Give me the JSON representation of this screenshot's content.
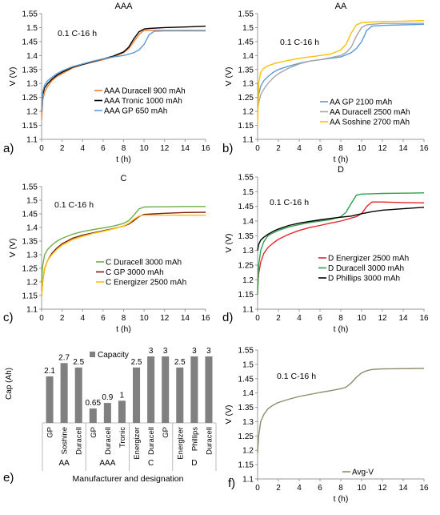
{
  "chart_data": [
    {
      "id": "a",
      "type": "line",
      "panel_letter": "a)",
      "title": "AAA",
      "annotation": "0.1 C-16 h",
      "xlabel": "t (h)",
      "ylabel": "V (V)",
      "xlim": [
        0,
        16
      ],
      "ylim": [
        1.1,
        1.55
      ],
      "xticks": [
        "0",
        "2",
        "4",
        "6",
        "8",
        "10",
        "12",
        "14",
        "16"
      ],
      "yticks": [
        "1.1",
        "1.15",
        "1.2",
        "1.25",
        "1.3",
        "1.35",
        "1.4",
        "1.45",
        "1.5",
        "1.55"
      ],
      "grid": false,
      "legend_position": "bottom-right",
      "series": [
        {
          "name": "AAA Duracell 900 mAh",
          "color": "#ED7D31",
          "x": [
            0,
            0.1,
            0.3,
            0.6,
            1,
            1.5,
            2,
            3,
            4,
            5,
            6,
            7,
            8,
            8.5,
            9,
            9.5,
            9.8,
            10,
            10.5,
            12,
            14,
            16
          ],
          "y": [
            1.17,
            1.24,
            1.27,
            1.29,
            1.31,
            1.325,
            1.335,
            1.355,
            1.367,
            1.377,
            1.385,
            1.395,
            1.41,
            1.425,
            1.45,
            1.475,
            1.485,
            1.49,
            1.49,
            1.49,
            1.49,
            1.49
          ]
        },
        {
          "name": "AAA Tronic 1000 mAh",
          "color": "#000000",
          "x": [
            0,
            0.1,
            0.3,
            0.6,
            1,
            1.5,
            2,
            3,
            4,
            5,
            6,
            7,
            8,
            8.5,
            9,
            9.5,
            10,
            10.5,
            12,
            14,
            16
          ],
          "y": [
            1.2,
            1.26,
            1.285,
            1.3,
            1.315,
            1.33,
            1.34,
            1.358,
            1.368,
            1.378,
            1.388,
            1.398,
            1.413,
            1.43,
            1.46,
            1.485,
            1.495,
            1.497,
            1.5,
            1.502,
            1.505
          ]
        },
        {
          "name": "AAA GP 650 mAh",
          "color": "#5B9BD5",
          "x": [
            0,
            0.1,
            0.3,
            0.6,
            1,
            1.5,
            2,
            3,
            4,
            5,
            6,
            7,
            8,
            9,
            9.5,
            10,
            10.5,
            11,
            12,
            14,
            16
          ],
          "y": [
            1.2,
            1.27,
            1.295,
            1.31,
            1.322,
            1.335,
            1.345,
            1.36,
            1.37,
            1.38,
            1.388,
            1.395,
            1.4,
            1.41,
            1.42,
            1.44,
            1.475,
            1.487,
            1.488,
            1.488,
            1.488
          ]
        }
      ]
    },
    {
      "id": "b",
      "type": "line",
      "panel_letter": "b)",
      "title": "AA",
      "annotation": "0.1 C-16 h",
      "xlabel": "t (h)",
      "ylabel": "V (V)",
      "xlim": [
        0,
        16
      ],
      "ylim": [
        1.1,
        1.55
      ],
      "xticks": [
        "0",
        "2",
        "4",
        "6",
        "8",
        "10",
        "12",
        "14",
        "16"
      ],
      "yticks": [
        "1.1",
        "1.15",
        "1.2",
        "1.25",
        "1.3",
        "1.35",
        "1.4",
        "1.45",
        "1.5",
        "1.55"
      ],
      "grid": false,
      "legend_position": "bottom-right",
      "series": [
        {
          "name": "AA GP 2100 mAh",
          "color": "#5B9BD5",
          "x": [
            0,
            0.1,
            0.3,
            0.6,
            1,
            1.5,
            2,
            3,
            4,
            5,
            6,
            7,
            8,
            9,
            9.5,
            10,
            10.5,
            11,
            12,
            14,
            16
          ],
          "y": [
            1.22,
            1.26,
            1.29,
            1.31,
            1.325,
            1.34,
            1.35,
            1.362,
            1.372,
            1.38,
            1.385,
            1.39,
            1.395,
            1.41,
            1.425,
            1.45,
            1.49,
            1.505,
            1.508,
            1.51,
            1.512
          ]
        },
        {
          "name": "AA Duracell 2500 mAh",
          "color": "#A5A5A5",
          "x": [
            0,
            0.1,
            0.3,
            0.6,
            1,
            1.5,
            2,
            3,
            4,
            5,
            6,
            7,
            8,
            8.5,
            9,
            9.5,
            10,
            10.5,
            12,
            14,
            16
          ],
          "y": [
            1.2,
            1.23,
            1.26,
            1.28,
            1.3,
            1.32,
            1.335,
            1.355,
            1.37,
            1.38,
            1.385,
            1.392,
            1.4,
            1.41,
            1.43,
            1.47,
            1.5,
            1.51,
            1.515,
            1.515,
            1.515
          ]
        },
        {
          "name": "AA Soshine 2700 mAh",
          "color": "#FFC000",
          "x": [
            0,
            0.1,
            0.3,
            0.6,
            1,
            1.5,
            2,
            3,
            4,
            5,
            6,
            7,
            8,
            8.5,
            9,
            9.5,
            10,
            11,
            12,
            14,
            16
          ],
          "y": [
            1.15,
            1.3,
            1.34,
            1.355,
            1.363,
            1.37,
            1.375,
            1.383,
            1.39,
            1.395,
            1.4,
            1.405,
            1.42,
            1.44,
            1.48,
            1.51,
            1.518,
            1.52,
            1.522,
            1.523,
            1.525
          ]
        }
      ]
    },
    {
      "id": "c",
      "type": "line",
      "panel_letter": "c)",
      "title": "C",
      "annotation": "0.1 C-16 h",
      "xlabel": "t (h)",
      "ylabel": "V (V)",
      "xlim": [
        0,
        16
      ],
      "ylim": [
        1.1,
        1.55
      ],
      "xticks": [
        "0",
        "2",
        "4",
        "6",
        "8",
        "10",
        "12",
        "14",
        "16"
      ],
      "yticks": [
        "1.1",
        "1.15",
        "1.2",
        "1.25",
        "1.3",
        "1.35",
        "1.4",
        "1.45",
        "1.5",
        "1.55"
      ],
      "grid": false,
      "legend_position": "bottom-right",
      "series": [
        {
          "name": "C Duracell 3000 mAh",
          "color": "#70AD47",
          "x": [
            0,
            0.1,
            0.3,
            0.6,
            1,
            1.5,
            2,
            3,
            4,
            5,
            6,
            7,
            8,
            8.5,
            9,
            9.5,
            10,
            11,
            12,
            14,
            16
          ],
          "y": [
            1.2,
            1.26,
            1.3,
            1.32,
            1.335,
            1.35,
            1.36,
            1.375,
            1.385,
            1.392,
            1.398,
            1.405,
            1.415,
            1.425,
            1.445,
            1.468,
            1.475,
            1.476,
            1.476,
            1.477,
            1.477
          ]
        },
        {
          "name": "C GP 3000 mAh",
          "color": "#7B1F1F",
          "x": [
            0,
            0.1,
            0.3,
            0.6,
            1,
            1.5,
            2,
            3,
            4,
            5,
            6,
            7,
            8,
            8.5,
            9,
            9.5,
            10,
            11,
            12,
            14,
            16
          ],
          "y": [
            1.15,
            1.2,
            1.25,
            1.28,
            1.305,
            1.325,
            1.34,
            1.36,
            1.372,
            1.38,
            1.388,
            1.396,
            1.405,
            1.412,
            1.425,
            1.44,
            1.448,
            1.45,
            1.452,
            1.455,
            1.456
          ]
        },
        {
          "name": "C Energizer 2500 mAh",
          "color": "#FFC000",
          "x": [
            0,
            0.1,
            0.3,
            0.6,
            1,
            1.5,
            2,
            3,
            4,
            5,
            6,
            7,
            8,
            8.5,
            9,
            9.5,
            10,
            11,
            12,
            14,
            16
          ],
          "y": [
            1.15,
            1.2,
            1.25,
            1.28,
            1.3,
            1.32,
            1.335,
            1.355,
            1.368,
            1.378,
            1.386,
            1.395,
            1.405,
            1.415,
            1.43,
            1.442,
            1.445,
            1.445,
            1.445,
            1.445,
            1.445
          ]
        }
      ]
    },
    {
      "id": "d",
      "type": "line",
      "panel_letter": "d)",
      "title": "D",
      "annotation": "0.1 C-16 h",
      "xlabel": "t (h)",
      "ylabel": "V (V)",
      "xlim": [
        0,
        16
      ],
      "ylim": [
        1.1,
        1.55
      ],
      "xticks": [
        "0",
        "2",
        "4",
        "6",
        "8",
        "10",
        "12",
        "14",
        "16"
      ],
      "yticks": [
        "1.1",
        "1.15",
        "1.2",
        "1.25",
        "1.3",
        "1.35",
        "1.4",
        "1.45",
        "1.5",
        "1.55"
      ],
      "grid": false,
      "legend_position": "bottom-right",
      "series": [
        {
          "name": "D Energizer 2500 mAh",
          "color": "#E3262B",
          "x": [
            0,
            0.1,
            0.3,
            0.6,
            1,
            1.5,
            2,
            3,
            4,
            5,
            6,
            7,
            8,
            9,
            9.5,
            10,
            10.5,
            11,
            12,
            14,
            16
          ],
          "y": [
            1.17,
            1.22,
            1.26,
            1.29,
            1.31,
            1.325,
            1.338,
            1.355,
            1.368,
            1.378,
            1.385,
            1.393,
            1.4,
            1.41,
            1.415,
            1.425,
            1.45,
            1.465,
            1.465,
            1.463,
            1.462
          ]
        },
        {
          "name": "D Duracell 3000 mAh",
          "color": "#2E9E4F",
          "x": [
            0,
            0.1,
            0.3,
            0.6,
            1,
            1.5,
            2,
            3,
            4,
            5,
            6,
            7,
            8,
            8.5,
            9,
            9.5,
            10,
            11,
            12,
            14,
            16
          ],
          "y": [
            1.15,
            1.25,
            1.3,
            1.33,
            1.35,
            1.36,
            1.368,
            1.38,
            1.388,
            1.395,
            1.4,
            1.405,
            1.415,
            1.43,
            1.46,
            1.488,
            1.492,
            1.493,
            1.494,
            1.495,
            1.496
          ]
        },
        {
          "name": "D Phillips 3000 mAh",
          "color": "#000000",
          "x": [
            0,
            0.1,
            0.3,
            0.6,
            1,
            1.5,
            2,
            3,
            4,
            5,
            6,
            7,
            8,
            9,
            10,
            11,
            12,
            14,
            16
          ],
          "y": [
            1.3,
            1.32,
            1.335,
            1.345,
            1.355,
            1.365,
            1.373,
            1.385,
            1.393,
            1.399,
            1.404,
            1.409,
            1.413,
            1.417,
            1.425,
            1.432,
            1.437,
            1.442,
            1.447
          ]
        }
      ]
    },
    {
      "id": "e",
      "type": "bar",
      "panel_letter": "e)",
      "ylabel": "Cap (Ah)",
      "xlabel": "Manufacturer and designation",
      "legend_entry": "Capacity",
      "bar_color": "#808080",
      "ylim": [
        0,
        3
      ],
      "categories": [
        "GP",
        "Soshine",
        "Duracell",
        "GP",
        "Duracell",
        "Tronic",
        "Energizer",
        "Duracell",
        "GP",
        "Energizer",
        "Phillips",
        "Duracell"
      ],
      "values": [
        2.1,
        2.7,
        2.5,
        0.65,
        0.9,
        1,
        2.5,
        3,
        3,
        2.5,
        3,
        3
      ],
      "data_labels": [
        "2.1",
        "2.7",
        "2.5",
        "0.65",
        "0.9",
        "1",
        "2.5",
        "3",
        "3",
        "2.5",
        "3",
        "3"
      ],
      "groups": [
        {
          "label": "AA",
          "start": 0,
          "end": 2
        },
        {
          "label": "AAA",
          "start": 3,
          "end": 5
        },
        {
          "label": "C",
          "start": 6,
          "end": 8
        },
        {
          "label": "D",
          "start": 9,
          "end": 11
        }
      ]
    },
    {
      "id": "f",
      "type": "line",
      "panel_letter": "f)",
      "annotation": "0.1 C-16 h",
      "xlabel": "t (h)",
      "ylabel": "V (V)",
      "xlim": [
        0,
        16
      ],
      "ylim": [
        1.1,
        1.55
      ],
      "xticks": [
        "0",
        "2",
        "4",
        "6",
        "8",
        "10",
        "12",
        "14",
        "16"
      ],
      "yticks": [
        "1.1",
        "1.15",
        "1.2",
        "1.25",
        "1.3",
        "1.35",
        "1.4",
        "1.45",
        "1.5",
        "1.55"
      ],
      "grid": false,
      "legend_position": "bottom-left",
      "series": [
        {
          "name": "Avg-V",
          "color": "#8C8C6A",
          "x": [
            0,
            0.1,
            0.3,
            0.6,
            1,
            1.5,
            2,
            3,
            4,
            5,
            6,
            7,
            8,
            8.5,
            9,
            9.5,
            10,
            10.5,
            11,
            12,
            14,
            16
          ],
          "y": [
            1.19,
            1.25,
            1.3,
            1.325,
            1.345,
            1.358,
            1.367,
            1.378,
            1.388,
            1.395,
            1.402,
            1.408,
            1.415,
            1.42,
            1.435,
            1.455,
            1.47,
            1.478,
            1.482,
            1.484,
            1.485,
            1.486
          ]
        }
      ]
    }
  ]
}
